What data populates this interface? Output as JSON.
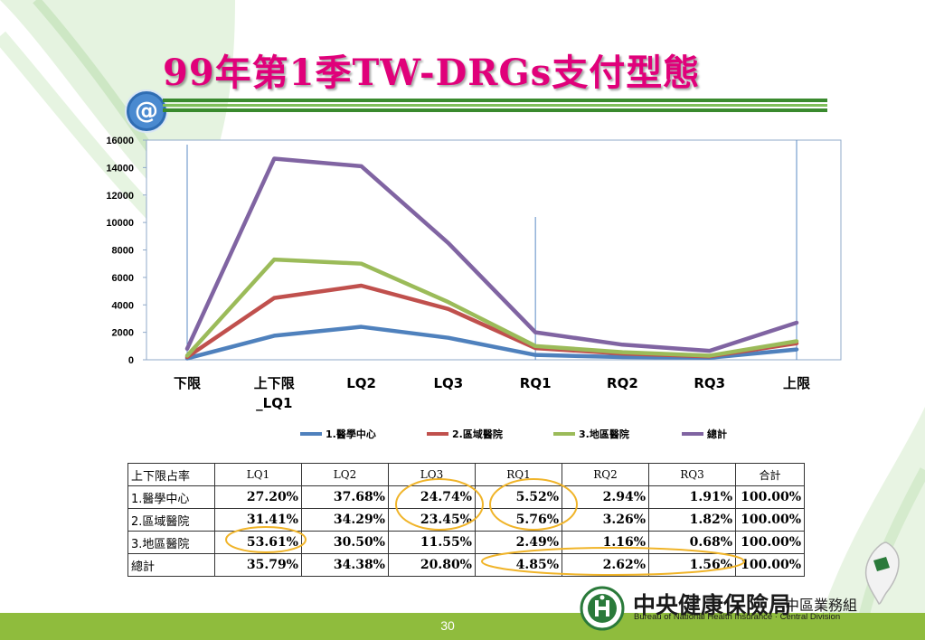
{
  "slide": {
    "title": "99年第1季TW-DRGs支付型態",
    "page_number": "30"
  },
  "chart_data": {
    "type": "line",
    "categories": [
      "下限",
      "上下限_LQ1",
      "LQ2",
      "LQ3",
      "RQ1",
      "RQ2",
      "RQ3",
      "上限"
    ],
    "category_lines": [
      [
        "下限"
      ],
      [
        "上下限",
        "_LQ1"
      ],
      [
        "LQ2"
      ],
      [
        "LQ3"
      ],
      [
        "RQ1"
      ],
      [
        "RQ2"
      ],
      [
        "RQ3"
      ],
      [
        "上限"
      ]
    ],
    "ylim": [
      0,
      16000
    ],
    "yticks": [
      0,
      2000,
      4000,
      6000,
      8000,
      10000,
      12000,
      14000,
      16000
    ],
    "legend_position": "bottom",
    "grid": false,
    "series": [
      {
        "name": "1.醫學中心",
        "color": "#4f81bd",
        "values": [
          100,
          1750,
          2400,
          1600,
          350,
          200,
          150,
          750
        ]
      },
      {
        "name": "2.區域醫院",
        "color": "#c0504d",
        "values": [
          200,
          4500,
          5400,
          3700,
          850,
          450,
          250,
          1200
        ]
      },
      {
        "name": "3.地區醫院",
        "color": "#9bbb59",
        "values": [
          300,
          7300,
          7000,
          4200,
          1000,
          550,
          300,
          1350
        ]
      },
      {
        "name": "總計",
        "color": "#8064a2",
        "values": [
          800,
          14650,
          14100,
          8500,
          2000,
          1100,
          650,
          2700
        ]
      }
    ]
  },
  "table": {
    "header_label": "上下限占率",
    "columns": [
      "LQ1",
      "LQ2",
      "LQ3",
      "RQ1",
      "RQ2",
      "RQ3",
      "合計"
    ],
    "rows": [
      {
        "label": "1.醫學中心",
        "values": [
          "27.20%",
          "37.68%",
          "24.74%",
          "5.52%",
          "2.94%",
          "1.91%",
          "100.00%"
        ]
      },
      {
        "label": "2.區域醫院",
        "values": [
          "31.41%",
          "34.29%",
          "23.45%",
          "5.76%",
          "3.26%",
          "1.82%",
          "100.00%"
        ]
      },
      {
        "label": "3.地區醫院",
        "values": [
          "53.61%",
          "30.50%",
          "11.55%",
          "2.49%",
          "1.16%",
          "0.68%",
          "100.00%"
        ]
      },
      {
        "label": "總計",
        "values": [
          "35.79%",
          "34.38%",
          "20.80%",
          "4.85%",
          "2.62%",
          "1.56%",
          "100.00%"
        ]
      }
    ]
  },
  "footer": {
    "org_name": "中央健康保險局",
    "org_division": "中區業務組",
    "org_english": "Bureau of National Health Insurance · Central Division"
  },
  "colors": {
    "title": "#e0007a",
    "footer_bar": "#8fbc3d",
    "highlight_circle": "#f0b429",
    "rule_green": "#3a8a2e"
  },
  "icons": [
    "at-sign-icon",
    "bnhi-emblem-icon",
    "taiwan-map-icon"
  ]
}
